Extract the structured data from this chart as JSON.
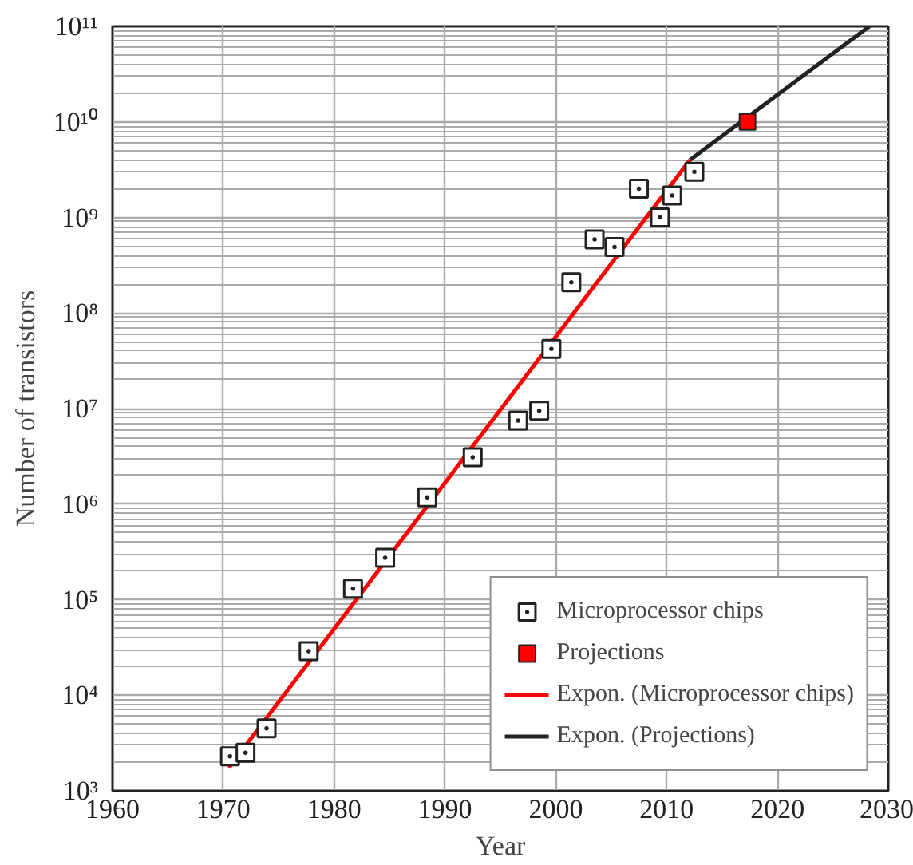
{
  "chart_data": {
    "type": "scatter",
    "xlabel": "Year",
    "ylabel": "Number of transistors",
    "log": "y",
    "grid": true,
    "legend": "bottom right",
    "xlim": [
      1960,
      2030
    ],
    "xticks": [
      1960,
      1970,
      1980,
      1990,
      2000,
      2010,
      2020,
      2030
    ],
    "ylim": [
      1000,
      100000000000
    ],
    "yticks": [
      {
        "value": 1000,
        "label": "10³"
      },
      {
        "value": 10000,
        "label": "10⁴"
      },
      {
        "value": 100000,
        "label": "10⁵"
      },
      {
        "value": 1000000,
        "label": "10⁶"
      },
      {
        "value": 10000000,
        "label": "10⁷"
      },
      {
        "value": 100000000,
        "label": "10⁸"
      },
      {
        "value": 1000000000,
        "label": "10⁹"
      },
      {
        "value": 10000000000,
        "label": "10¹⁰"
      },
      {
        "value": 100000000000,
        "label": "10¹¹"
      }
    ],
    "series": [
      {
        "name": "Microprocessor chips",
        "marker": "square",
        "color": "#222222",
        "x": [
          1970.6,
          1972.0,
          1973.9,
          1977.7,
          1981.7,
          1984.6,
          1988.4,
          1992.5,
          1996.6,
          1998.5,
          1999.6,
          2001.4,
          2003.5,
          2005.3,
          2007.5,
          2009.4,
          2010.5,
          2012.5
        ],
        "values": [
          2300,
          2500,
          4500,
          29000,
          130000,
          275000,
          1180000,
          3100000,
          7500000,
          9500000,
          42000000,
          210000000,
          590000000,
          490000000,
          2000000000,
          1000000000,
          1700000000,
          3000000000
        ]
      },
      {
        "name": "Projections",
        "marker": "square",
        "color": "#ff0000",
        "x": [
          2017.3
        ],
        "values": [
          10000000000
        ]
      },
      {
        "name": "Expon. (Microprocessor chips)",
        "type": "line",
        "color": "#ff0000",
        "x": [
          1970.5,
          2012.1
        ],
        "values": [
          1750,
          4000000000
        ]
      },
      {
        "name": "Expon. (Projections)",
        "type": "line",
        "color": "#222222",
        "x": [
          2012.1,
          2028.3
        ],
        "values": [
          4000000000,
          100000000000
        ]
      }
    ]
  }
}
